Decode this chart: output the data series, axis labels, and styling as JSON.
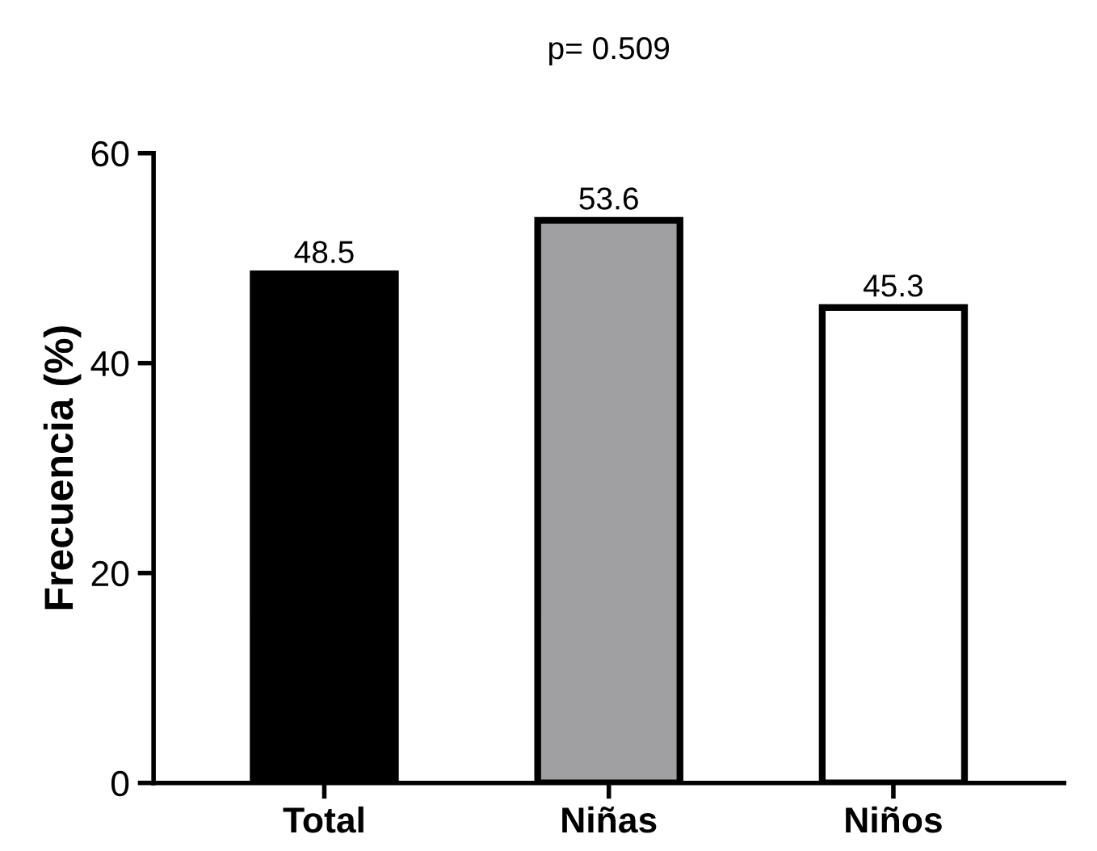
{
  "chart_data": {
    "type": "bar",
    "title": "p= 0.509",
    "ylabel": "Frecuencia (%)",
    "categories": [
      "Total",
      "Niñas",
      "Niños"
    ],
    "values": [
      48.5,
      53.6,
      45.3
    ],
    "colors": [
      "#000000",
      "#a0a0a2",
      "#ffffff"
    ],
    "ylim": [
      0,
      60
    ],
    "yticks": [
      0,
      20,
      40,
      60
    ],
    "grid": false,
    "legend": false,
    "data_labels": true
  }
}
